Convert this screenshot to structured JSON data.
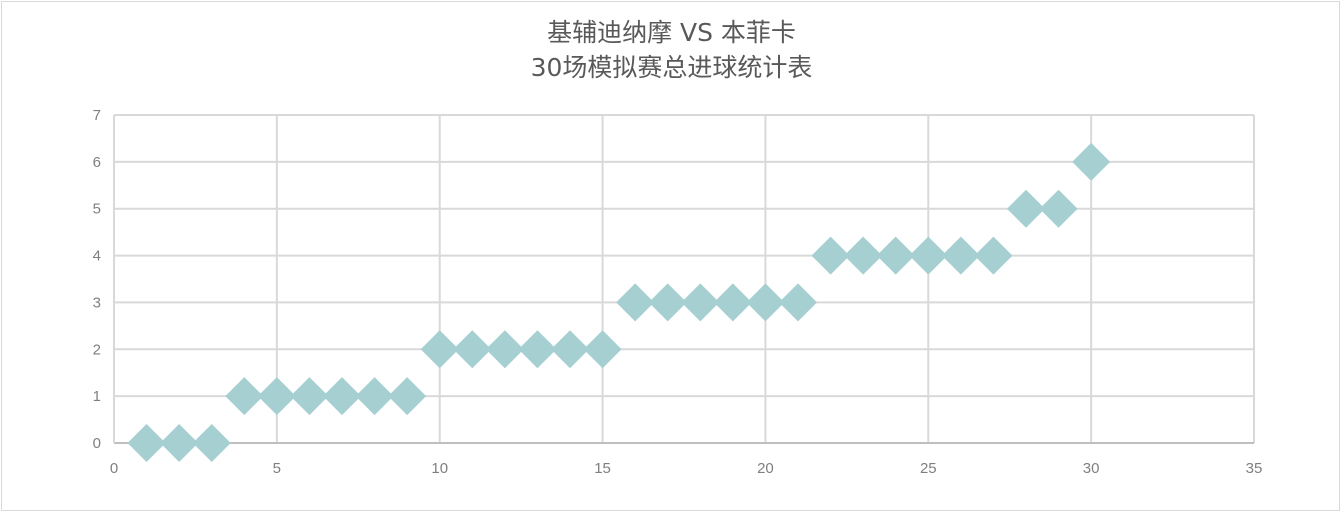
{
  "chart_data": {
    "type": "scatter",
    "title": "基辅迪纳摩 VS 本菲卡 30场模拟赛总进球统计表",
    "title_lines": [
      "基辅迪纳摩 VS 本菲卡",
      "30场模拟赛总进球统计表"
    ],
    "xlabel": "",
    "ylabel": "",
    "xlim": [
      0,
      35
    ],
    "ylim": [
      0,
      7
    ],
    "x_ticks": [
      0,
      5,
      10,
      15,
      20,
      25,
      30,
      35
    ],
    "y_ticks": [
      0,
      1,
      2,
      3,
      4,
      5,
      6,
      7
    ],
    "grid": true,
    "legend": null,
    "marker": "diamond",
    "marker_color": "#a6cfd1",
    "series": [
      {
        "name": "总进球",
        "x": [
          1,
          2,
          3,
          4,
          5,
          6,
          7,
          8,
          9,
          10,
          11,
          12,
          13,
          14,
          15,
          16,
          17,
          18,
          19,
          20,
          21,
          22,
          23,
          24,
          25,
          26,
          27,
          28,
          29,
          30
        ],
        "y": [
          0,
          0,
          0,
          1,
          1,
          1,
          1,
          1,
          1,
          2,
          2,
          2,
          2,
          2,
          2,
          3,
          3,
          3,
          3,
          3,
          3,
          4,
          4,
          4,
          4,
          4,
          4,
          5,
          5,
          6
        ]
      }
    ]
  },
  "colors": {
    "marker": "#a6cfd1",
    "grid": "#d9d9d9",
    "axis": "#bfbfbf",
    "tick_text": "#7f7f7f",
    "title_text": "#595959"
  }
}
